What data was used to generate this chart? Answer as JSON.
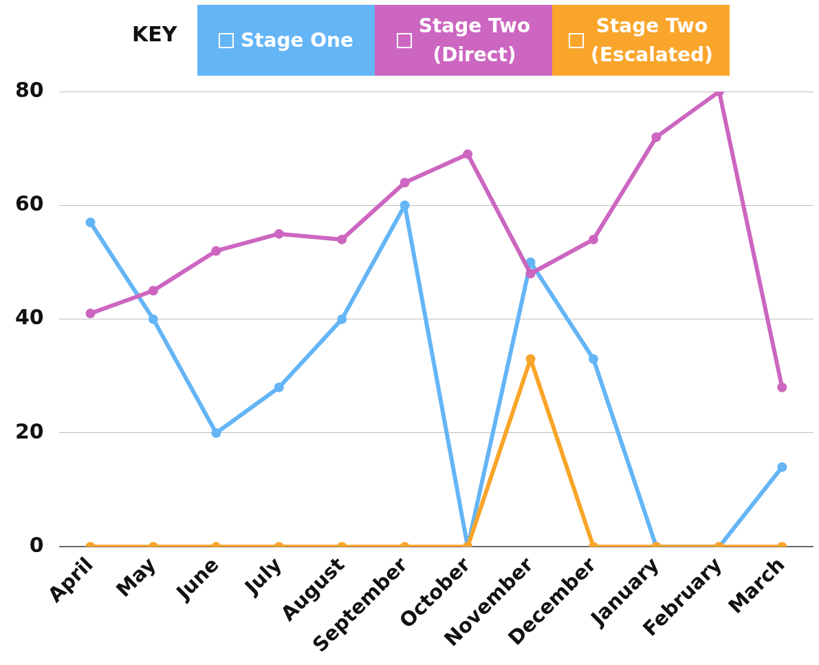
{
  "chart_data": {
    "type": "line",
    "legend_title": "KEY",
    "legend": "top",
    "categories": [
      "April",
      "May",
      "June",
      "July",
      "August",
      "September",
      "October",
      "November",
      "December",
      "January",
      "February",
      "March"
    ],
    "series": [
      {
        "name": "Stage One",
        "color": "#64b5f6",
        "values": [
          57,
          40,
          20,
          28,
          40,
          60,
          0,
          50,
          33,
          0,
          0,
          14
        ]
      },
      {
        "name": "Stage Two\n(Direct)",
        "color": "#cc66c0",
        "values": [
          41,
          45,
          52,
          55,
          54,
          64,
          69,
          48,
          54,
          72,
          80,
          28
        ]
      },
      {
        "name": "Stage Two\n(Escalated)",
        "color": "#f9a52b",
        "values": [
          0,
          0,
          0,
          0,
          0,
          0,
          0,
          33,
          0,
          0,
          0,
          0
        ]
      }
    ],
    "ylim": [
      0,
      80
    ],
    "yticks": [
      0,
      20,
      40,
      60,
      80
    ],
    "grid": "y",
    "marker": "circle",
    "line_style": "solid"
  }
}
